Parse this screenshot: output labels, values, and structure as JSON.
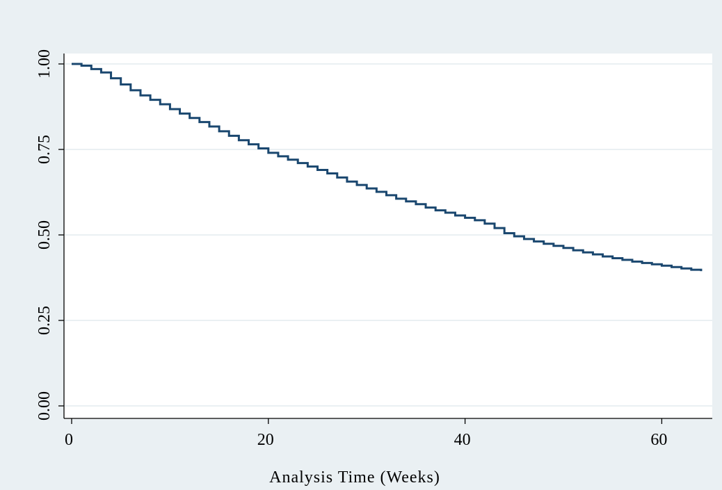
{
  "chart_data": {
    "type": "line",
    "step": true,
    "title": "",
    "xlabel": "Analysis Time (Weeks)",
    "ylabel": "",
    "xlim": [
      -1,
      65
    ],
    "ylim": [
      -0.02,
      1.02
    ],
    "x_ticks": [
      0,
      20,
      40,
      60
    ],
    "x_tick_labels": [
      "0",
      "20",
      "40",
      "60"
    ],
    "y_ticks": [
      0,
      0.25,
      0.5,
      0.75,
      1
    ],
    "y_tick_labels": [
      "0.00",
      "0.25",
      "0.50",
      "0.75",
      "1.00"
    ],
    "grid": true,
    "legend": "none",
    "colors": {
      "background": "#eaf0f3",
      "plot_area": "#ffffff",
      "gridline": "#eaf0f3",
      "line": "#1a476f",
      "axis": "#000000"
    },
    "series": [
      {
        "x": [
          0,
          1,
          2,
          3,
          4,
          5,
          6,
          7,
          8,
          9,
          10,
          11,
          12,
          13,
          14,
          15,
          16,
          17,
          18,
          19,
          20,
          21,
          22,
          23,
          24,
          25,
          26,
          27,
          28,
          29,
          30,
          31,
          32,
          33,
          34,
          35,
          36,
          37,
          38,
          39,
          40,
          41,
          42,
          43,
          44,
          45,
          46,
          47,
          48,
          49,
          50,
          51,
          52,
          53,
          54,
          55,
          56,
          57,
          58,
          59,
          60,
          61,
          62,
          63,
          64
        ],
        "y": [
          1.0,
          0.995,
          0.985,
          0.975,
          0.958,
          0.94,
          0.923,
          0.908,
          0.895,
          0.882,
          0.868,
          0.855,
          0.842,
          0.83,
          0.817,
          0.803,
          0.79,
          0.777,
          0.765,
          0.753,
          0.74,
          0.73,
          0.72,
          0.71,
          0.7,
          0.69,
          0.68,
          0.668,
          0.656,
          0.646,
          0.636,
          0.626,
          0.616,
          0.606,
          0.598,
          0.59,
          0.58,
          0.572,
          0.565,
          0.557,
          0.55,
          0.543,
          0.533,
          0.52,
          0.505,
          0.496,
          0.488,
          0.481,
          0.474,
          0.468,
          0.462,
          0.455,
          0.449,
          0.443,
          0.437,
          0.432,
          0.427,
          0.422,
          0.418,
          0.414,
          0.41,
          0.406,
          0.402,
          0.398,
          0.394
        ]
      }
    ]
  }
}
